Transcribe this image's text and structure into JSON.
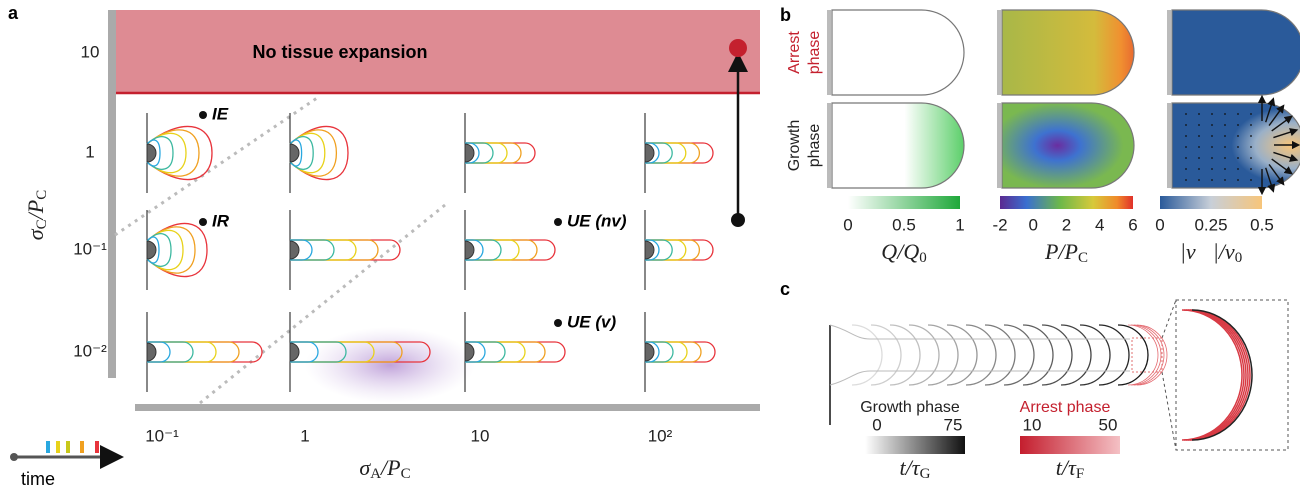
{
  "panel_a": {
    "label": "a",
    "region_label": "No tissue expansion",
    "y_label": [
      "σ",
      "C",
      "/",
      "P",
      "C"
    ],
    "x_label": [
      "σ",
      "A",
      "/",
      "P",
      "C"
    ],
    "y_ticks": [
      "10",
      "1",
      "10⁻¹",
      "10⁻²"
    ],
    "x_ticks": [
      "10⁻¹",
      "1",
      "10",
      "10²"
    ],
    "annotations": [
      "IE",
      "IR",
      "UE (nv)",
      "UE (v)"
    ],
    "time_legend": "time"
  },
  "panel_b": {
    "label": "b",
    "rows": [
      [
        "Arrest",
        "phase"
      ],
      [
        "Growth",
        "phase"
      ]
    ],
    "colorbars": [
      {
        "ticks": [
          0,
          0.5,
          1
        ],
        "label": [
          "Q",
          "/",
          "Q",
          "0"
        ]
      },
      {
        "ticks": [
          -2,
          0,
          2,
          4,
          6
        ],
        "label": [
          "P",
          "/",
          "P",
          "C"
        ]
      },
      {
        "ticks": [
          0,
          0.25,
          0.5
        ],
        "label": [
          "|v⃗|",
          "/",
          "v",
          "0"
        ]
      }
    ]
  },
  "panel_c": {
    "label": "c",
    "legends": [
      {
        "title": "Growth phase",
        "ticks": [
          0,
          75
        ],
        "label": [
          "t",
          "/",
          "τ",
          "G"
        ]
      },
      {
        "title": "Arrest phase",
        "ticks": [
          10,
          50
        ],
        "label": [
          "t",
          "/",
          "τ",
          "F"
        ]
      }
    ]
  }
}
